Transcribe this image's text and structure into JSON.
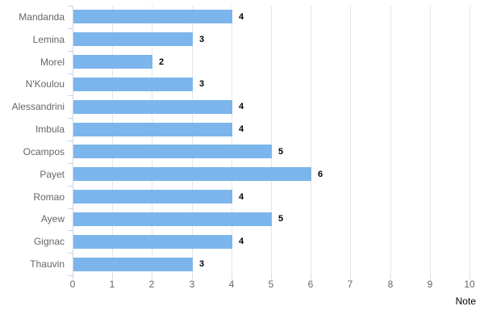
{
  "chart_data": {
    "type": "bar",
    "orientation": "horizontal",
    "title": "",
    "xlabel": "Note",
    "ylabel": "",
    "categories": [
      "Mandanda",
      "Lemina",
      "Morel",
      "N'Koulou",
      "Alessandrini",
      "Imbula",
      "Ocampos",
      "Payet",
      "Romao",
      "Ayew",
      "Gignac",
      "Thauvin"
    ],
    "values": [
      4,
      3,
      2,
      3,
      4,
      4,
      5,
      6,
      4,
      5,
      4,
      3
    ],
    "xlim": [
      0,
      10
    ],
    "x_ticks": [
      0,
      1,
      2,
      3,
      4,
      5,
      6,
      7,
      8,
      9,
      10
    ],
    "grid": true,
    "legend": false,
    "data_labels": true,
    "colors": {
      "bar": "#7cb5ec",
      "gridline": "#e6e6e6",
      "axis_line": "#ccd6eb",
      "tick_label": "#666666",
      "category_label": "#666666",
      "data_label": "#000000",
      "background": "#ffffff"
    }
  }
}
